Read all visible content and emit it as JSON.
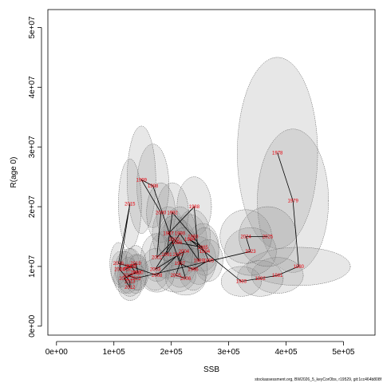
{
  "chart_data": {
    "type": "scatter",
    "title": "",
    "xlabel": "SSB",
    "ylabel": "R(age 0)",
    "xlim": [
      -15000,
      555000
    ],
    "ylim": [
      -1500000,
      53000000
    ],
    "x_ticks": [
      0,
      100000,
      200000,
      300000,
      400000,
      500000
    ],
    "x_tick_labels": [
      "0e+00",
      "1e+05",
      "2e+05",
      "3e+05",
      "4e+05",
      "5e+05"
    ],
    "y_ticks": [
      0,
      10000000,
      20000000,
      30000000,
      40000000,
      50000000
    ],
    "y_tick_labels": [
      "0e+00",
      "1e+07",
      "2e+07",
      "3e+07",
      "4e+07",
      "5e+07"
    ],
    "grid": false,
    "legend": "none",
    "footer": "stockassessment.org, BW2026_5_keyCorObs, r19529, git:1cc464b808f",
    "colors": {
      "label": "#e8000b",
      "line": "#000000",
      "ellipse_fill": "#909090",
      "ellipse_stroke": "#555555"
    },
    "series": [
      {
        "points": [
          {
            "year": "1978",
            "x": 385000,
            "y": 29000000,
            "rx": 70000,
            "ry": 16000000
          },
          {
            "year": "1979",
            "x": 412000,
            "y": 21000000,
            "rx": 62000,
            "ry": 12000000
          },
          {
            "year": "1980",
            "x": 422000,
            "y": 10000000,
            "rx": 90000,
            "ry": 3200000
          },
          {
            "year": "1981",
            "x": 385000,
            "y": 8500000,
            "rx": 45000,
            "ry": 3000000
          },
          {
            "year": "1982",
            "x": 355000,
            "y": 8000000,
            "rx": 40000,
            "ry": 3000000
          },
          {
            "year": "1983",
            "x": 322000,
            "y": 7500000,
            "rx": 35000,
            "ry": 2500000
          },
          {
            "year": "1984",
            "x": 232000,
            "y": 14500000,
            "rx": 30000,
            "ry": 4200000
          },
          {
            "year": "1985",
            "x": 255000,
            "y": 13200000,
            "rx": 28000,
            "ry": 4000000
          },
          {
            "year": "1986",
            "x": 210000,
            "y": 14000000,
            "rx": 32000,
            "ry": 4000000
          },
          {
            "year": "1987",
            "x": 195000,
            "y": 15500000,
            "rx": 28000,
            "ry": 4500000
          },
          {
            "year": "1988",
            "x": 240000,
            "y": 20000000,
            "rx": 30000,
            "ry": 5000000
          },
          {
            "year": "1989",
            "x": 248000,
            "y": 11000000,
            "rx": 30000,
            "ry": 4000000
          },
          {
            "year": "1990",
            "x": 215000,
            "y": 15500000,
            "rx": 28000,
            "ry": 4500000
          },
          {
            "year": "1991",
            "x": 192000,
            "y": 12000000,
            "rx": 30000,
            "ry": 4000000
          },
          {
            "year": "1992",
            "x": 202000,
            "y": 19000000,
            "rx": 28000,
            "ry": 5000000
          },
          {
            "year": "1993",
            "x": 238000,
            "y": 15000000,
            "rx": 30000,
            "ry": 4500000
          },
          {
            "year": "1994",
            "x": 258000,
            "y": 12500000,
            "rx": 25000,
            "ry": 4000000
          },
          {
            "year": "1995",
            "x": 265000,
            "y": 11000000,
            "rx": 25000,
            "ry": 3500000
          },
          {
            "year": "1996",
            "x": 238000,
            "y": 9500000,
            "rx": 25000,
            "ry": 3500000
          },
          {
            "year": "1997",
            "x": 215000,
            "y": 10500000,
            "rx": 28000,
            "ry": 4000000
          },
          {
            "year": "1998",
            "x": 168000,
            "y": 23500000,
            "rx": 28000,
            "ry": 7000000
          },
          {
            "year": "1999",
            "x": 148000,
            "y": 24500000,
            "rx": 25000,
            "ry": 9000000
          },
          {
            "year": "2000",
            "x": 182000,
            "y": 19000000,
            "rx": 25000,
            "ry": 5000000
          },
          {
            "year": "2001",
            "x": 175000,
            "y": 11500000,
            "rx": 28000,
            "ry": 4000000
          },
          {
            "year": "2002",
            "x": 205000,
            "y": 14500000,
            "rx": 28000,
            "ry": 4000000
          },
          {
            "year": "2003",
            "x": 172000,
            "y": 9500000,
            "rx": 25000,
            "ry": 3500000
          },
          {
            "year": "2004",
            "x": 222000,
            "y": 12500000,
            "rx": 25000,
            "ry": 4000000
          },
          {
            "year": "2005",
            "x": 208000,
            "y": 8500000,
            "rx": 35000,
            "ry": 2800000
          },
          {
            "year": "2006",
            "x": 225000,
            "y": 8000000,
            "rx": 35000,
            "ry": 2800000
          },
          {
            "year": "2007",
            "x": 212000,
            "y": 12000000,
            "rx": 25000,
            "ry": 4000000
          },
          {
            "year": "2008",
            "x": 175000,
            "y": 8500000,
            "rx": 30000,
            "ry": 2800000
          },
          {
            "year": "2009",
            "x": 130000,
            "y": 10000000,
            "rx": 18000,
            "ry": 3000000
          },
          {
            "year": "2010",
            "x": 138000,
            "y": 9000000,
            "rx": 20000,
            "ry": 3000000
          },
          {
            "year": "2011",
            "x": 118000,
            "y": 8000000,
            "rx": 18000,
            "ry": 2500000
          },
          {
            "year": "2012",
            "x": 128000,
            "y": 6500000,
            "rx": 20000,
            "ry": 2200000
          },
          {
            "year": "2013",
            "x": 128000,
            "y": 7500000,
            "rx": 20000,
            "ry": 2500000
          },
          {
            "year": "2014",
            "x": 110000,
            "y": 9500000,
            "rx": 15000,
            "ry": 3000000
          },
          {
            "year": "2015",
            "x": 128000,
            "y": 20500000,
            "rx": 20000,
            "ry": 7500000
          },
          {
            "year": "2016",
            "x": 108000,
            "y": 10500000,
            "rx": 15000,
            "ry": 3500000
          },
          {
            "year": "2017",
            "x": 127000,
            "y": 10000000,
            "rx": 18000,
            "ry": 3000000
          },
          {
            "year": "2018",
            "x": 120000,
            "y": 9500000,
            "rx": 18000,
            "ry": 3000000
          },
          {
            "year": "2019",
            "x": 138000,
            "y": 10500000,
            "rx": 18000,
            "ry": 3000000
          },
          {
            "year": "2020",
            "x": 142000,
            "y": 9000000,
            "rx": 18000,
            "ry": 3000000
          },
          {
            "year": "2021",
            "x": 125000,
            "y": 8500000,
            "rx": 18000,
            "ry": 3000000
          },
          {
            "year": "2022",
            "x": 138000,
            "y": 8000000,
            "rx": 18000,
            "ry": 2500000
          },
          {
            "year": "2023",
            "x": 338000,
            "y": 12500000,
            "rx": 45000,
            "ry": 4000000
          },
          {
            "year": "2024",
            "x": 330000,
            "y": 15000000,
            "rx": 45000,
            "ry": 4500000
          },
          {
            "year": "2025",
            "x": 368000,
            "y": 15000000,
            "rx": 50000,
            "ry": 5000000
          }
        ]
      }
    ]
  }
}
